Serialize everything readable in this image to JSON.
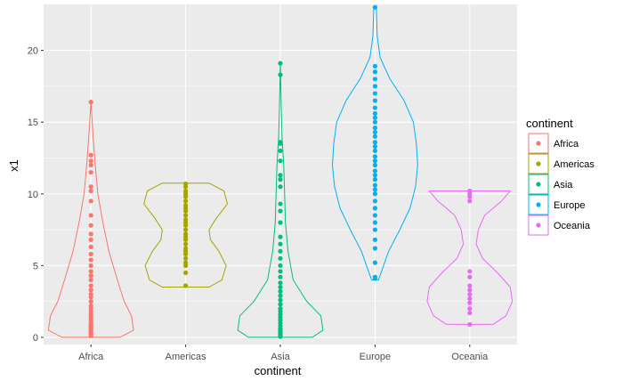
{
  "chart_data": {
    "type": "violin",
    "xlabel": "continent",
    "ylabel": "x1",
    "ylim": [
      -0.5,
      23.2
    ],
    "y_ticks": [
      0,
      5,
      10,
      15,
      20
    ],
    "categories": [
      "Africa",
      "Americas",
      "Asia",
      "Europe",
      "Oceania"
    ],
    "grid": true,
    "legend": {
      "title": "continent",
      "placement": "right",
      "entries": [
        "Africa",
        "Americas",
        "Asia",
        "Europe",
        "Oceania"
      ]
    },
    "colors": {
      "Africa": "#F8766D",
      "Americas": "#A3A500",
      "Asia": "#00BF7D",
      "Europe": "#00B0F6",
      "Oceania": "#E76BF3",
      "panel": "#EBEBEB",
      "grid": "#FFFFFF"
    },
    "series": [
      {
        "name": "Africa",
        "points": [
          0.1,
          0.2,
          0.3,
          0.4,
          0.5,
          0.6,
          0.7,
          0.8,
          0.9,
          1.0,
          1.2,
          1.4,
          1.6,
          1.8,
          2.0,
          2.2,
          2.5,
          2.8,
          3.0,
          3.3,
          3.6,
          4.0,
          4.3,
          4.6,
          5.0,
          5.4,
          5.8,
          6.3,
          6.8,
          7.2,
          7.8,
          8.5,
          9.5,
          10.2,
          10.5,
          11.5,
          12.0,
          12.3,
          12.7,
          16.4
        ],
        "violin_profile": [
          [
            0,
            0.68
          ],
          [
            0.5,
            1.0
          ],
          [
            1.5,
            0.95
          ],
          [
            2.5,
            0.78
          ],
          [
            4,
            0.62
          ],
          [
            6,
            0.42
          ],
          [
            8,
            0.28
          ],
          [
            10,
            0.16
          ],
          [
            12,
            0.1
          ],
          [
            14,
            0.05
          ],
          [
            16.4,
            0.0
          ]
        ]
      },
      {
        "name": "Americas",
        "points": [
          3.6,
          4.5,
          5.0,
          5.2,
          5.5,
          5.8,
          6.0,
          6.2,
          6.5,
          6.8,
          7.0,
          7.2,
          7.5,
          7.8,
          8.0,
          8.2,
          8.5,
          8.8,
          9.0,
          9.2,
          9.5,
          9.8,
          10.0,
          10.2,
          10.5,
          10.7
        ],
        "violin_profile": [
          [
            3.5,
            0.55
          ],
          [
            4,
            0.85
          ],
          [
            5,
            0.95
          ],
          [
            6,
            0.78
          ],
          [
            6.8,
            0.58
          ],
          [
            7.5,
            0.55
          ],
          [
            8.3,
            0.72
          ],
          [
            9.3,
            0.98
          ],
          [
            10.2,
            0.9
          ],
          [
            10.75,
            0.55
          ]
        ]
      },
      {
        "name": "Asia",
        "points": [
          0.05,
          0.1,
          0.2,
          0.3,
          0.4,
          0.5,
          0.6,
          0.8,
          1.0,
          1.2,
          1.4,
          1.6,
          1.8,
          2.0,
          2.3,
          2.6,
          2.9,
          3.2,
          3.5,
          3.8,
          4.2,
          4.6,
          5.0,
          5.5,
          6.0,
          6.5,
          7.0,
          8.0,
          8.8,
          9.3,
          10.5,
          11.0,
          11.3,
          12.3,
          13.0,
          13.5,
          13.6,
          18.3,
          19.1
        ],
        "violin_profile": [
          [
            0,
            0.75
          ],
          [
            0.5,
            1.0
          ],
          [
            1.5,
            0.95
          ],
          [
            2.5,
            0.62
          ],
          [
            4,
            0.3
          ],
          [
            6,
            0.18
          ],
          [
            8,
            0.12
          ],
          [
            10,
            0.1
          ],
          [
            12,
            0.08
          ],
          [
            14,
            0.04
          ],
          [
            16,
            0.02
          ],
          [
            19.2,
            0.0
          ]
        ]
      },
      {
        "name": "Europe",
        "points": [
          4.1,
          4.2,
          5.2,
          6.2,
          6.8,
          7.5,
          8.0,
          8.5,
          9.0,
          9.5,
          10.0,
          10.3,
          10.6,
          11.0,
          11.3,
          11.6,
          12.0,
          12.3,
          12.6,
          13.0,
          13.3,
          13.6,
          14.0,
          14.3,
          14.6,
          15.0,
          15.3,
          15.6,
          16.0,
          16.5,
          17.0,
          17.5,
          18.0,
          18.5,
          18.9,
          23.0
        ],
        "violin_profile": [
          [
            4,
            0.08
          ],
          [
            5,
            0.2
          ],
          [
            6,
            0.32
          ],
          [
            7.5,
            0.58
          ],
          [
            9,
            0.82
          ],
          [
            10.5,
            0.95
          ],
          [
            12,
            1.0
          ],
          [
            13.5,
            0.97
          ],
          [
            15,
            0.9
          ],
          [
            16.5,
            0.68
          ],
          [
            18,
            0.35
          ],
          [
            19.5,
            0.12
          ],
          [
            21,
            0.05
          ],
          [
            23.1,
            0.03
          ]
        ]
      },
      {
        "name": "Oceania",
        "points": [
          0.9,
          1.7,
          2.0,
          2.4,
          2.7,
          3.0,
          3.3,
          3.6,
          4.2,
          4.6,
          9.5,
          9.8,
          10.0,
          10.2
        ],
        "violin_profile": [
          [
            0.9,
            0.55
          ],
          [
            1.5,
            0.85
          ],
          [
            2.5,
            1.0
          ],
          [
            3.5,
            0.95
          ],
          [
            4.5,
            0.65
          ],
          [
            5.5,
            0.3
          ],
          [
            6.5,
            0.15
          ],
          [
            7.5,
            0.2
          ],
          [
            8.5,
            0.35
          ],
          [
            9.5,
            0.75
          ],
          [
            10.2,
            0.95
          ]
        ]
      }
    ]
  }
}
